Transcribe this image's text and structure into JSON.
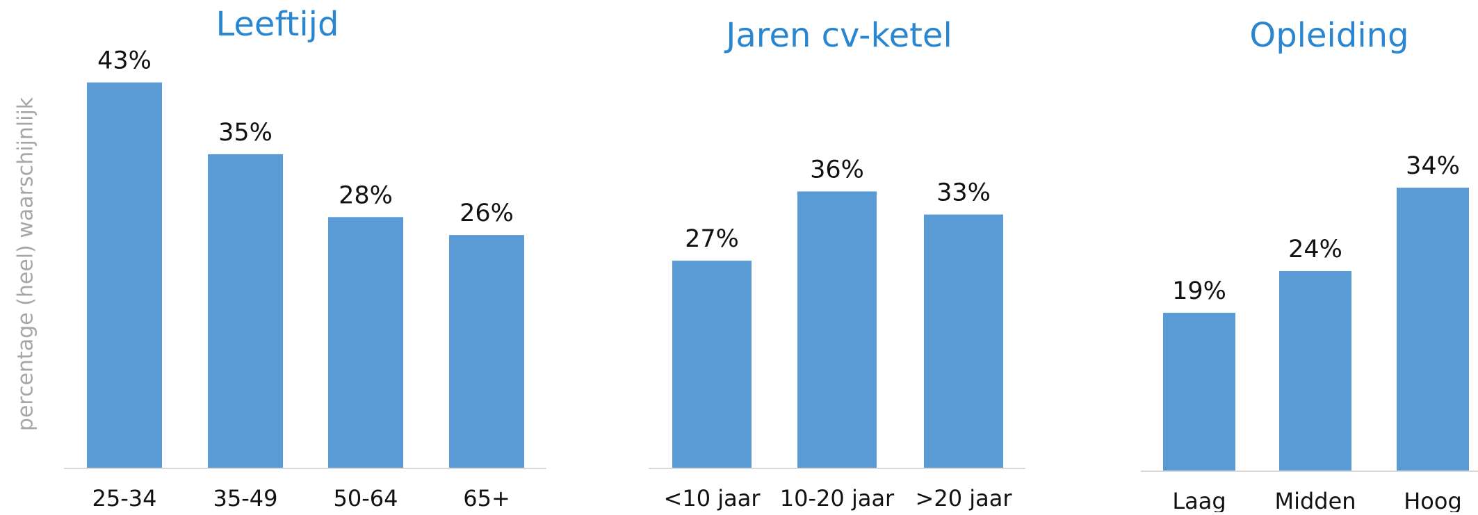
{
  "chart_data": [
    {
      "type": "bar",
      "title": "Leeftijd",
      "y_label": "percentage (heel) waarschijnlijk",
      "categories": [
        "25-34",
        "35-49",
        "50-64",
        "65+"
      ],
      "values": [
        43,
        35,
        28,
        26
      ],
      "value_labels": [
        "43%",
        "35%",
        "28%",
        "26%"
      ],
      "color": "#5b9bd5",
      "ylim": [
        0,
        48
      ]
    },
    {
      "type": "bar",
      "title": "Jaren cv-ketel",
      "categories": [
        "<10 jaar",
        "10-20 jaar",
        ">20 jaar"
      ],
      "values": [
        27,
        36,
        33
      ],
      "value_labels": [
        "27%",
        "36%",
        "33%"
      ],
      "color": "#5b9bd5",
      "ylim": [
        0,
        56
      ]
    },
    {
      "type": "bar",
      "title": "Opleiding",
      "categories": [
        "Laag",
        "Midden",
        "Hoog"
      ],
      "values": [
        19,
        24,
        34
      ],
      "value_labels": [
        "19%",
        "24%",
        "34%"
      ],
      "color": "#5b9bd5",
      "ylim": [
        0,
        52
      ]
    }
  ]
}
